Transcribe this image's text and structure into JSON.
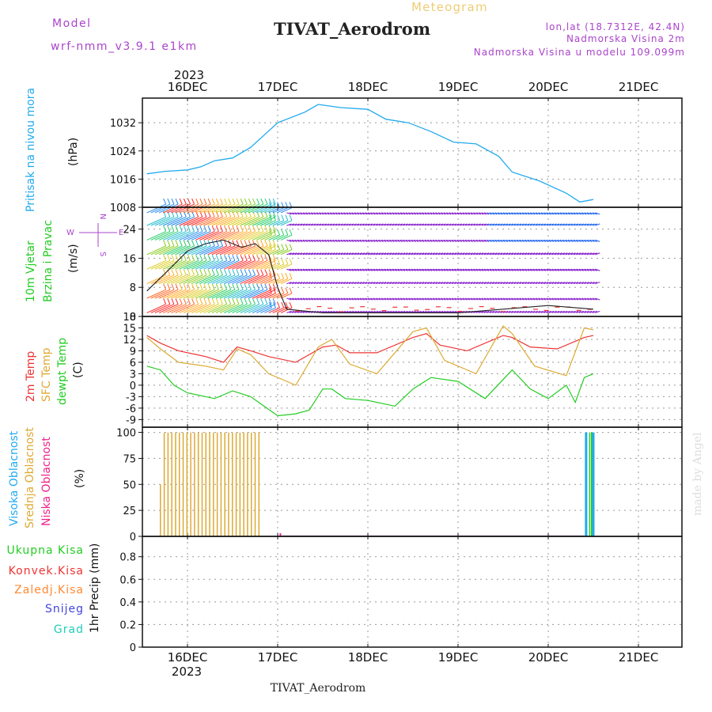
{
  "header": {
    "model_label": "Model",
    "model_name": "wrf-nmm_v3.9.1 e1km",
    "subtitle": "Meteogram",
    "station": "TIVAT_Aerodrom",
    "lonlat": "lon,lat (18.7312E, 42.4N)",
    "elevation": "Nadmorska Visina 2m",
    "model_elevation": "Nadmorska Visina u modelu 109.099m",
    "footer_station": "TIVAT_Aerodrom",
    "credit": "made by Angel"
  },
  "colors": {
    "pressure": "#22aaee",
    "temp": "#ee3333",
    "sfc_temp": "#ddaa33",
    "dewpt": "#22cc22",
    "high_cloud": "#22aaee",
    "mid_cloud": "#ddaa33",
    "low_cloud": "#ee2288",
    "wind_low": "#8822cc",
    "purple_text": "#aa44cc"
  },
  "chart_data": [
    {
      "type": "line",
      "panel": "pressure",
      "ylabel_1": "Pritisak na nivou mora",
      "ylabel_2": "(hPa)",
      "yticks": [
        "1008",
        "1016",
        "1024",
        "1032"
      ],
      "ylim": [
        1008,
        1039
      ],
      "x_unit": "day offset from 15DEC 2023 00Z",
      "x": [
        0.55,
        0.75,
        1.0,
        1.15,
        1.3,
        1.5,
        1.7,
        2.0,
        2.3,
        2.45,
        2.7,
        3.0,
        3.2,
        3.45,
        3.7,
        3.95,
        4.2,
        4.45,
        4.6,
        4.9,
        5.2,
        5.35,
        5.5
      ],
      "values": [
        1017.5,
        1018.2,
        1018.6,
        1019.5,
        1021.2,
        1022.0,
        1025.0,
        1032.0,
        1035.0,
        1037.2,
        1036.3,
        1035.8,
        1033.0,
        1032.0,
        1029.5,
        1026.5,
        1026.0,
        1022.5,
        1018.0,
        1015.5,
        1012.0,
        1009.5,
        1010.2
      ]
    },
    {
      "type": "barbs",
      "panel": "wind",
      "ylabel_1": "10m Vjetar",
      "ylabel_2": "Brzina i Pravac",
      "ylabel_3": "(m/s)",
      "compass_n": "N",
      "compass_s": "S",
      "compass_w": "W",
      "compass_e": "E",
      "yticks": [
        "0",
        "8",
        "16",
        "24"
      ],
      "ylim": [
        0,
        30
      ],
      "speed_x": [
        0.55,
        0.8,
        1.0,
        1.2,
        1.4,
        1.6,
        1.75,
        1.9,
        2.0,
        2.1,
        2.5,
        3.0,
        3.5,
        4.0,
        4.5,
        5.0,
        5.5
      ],
      "speed_values": [
        7,
        13,
        18,
        20,
        21,
        19,
        20,
        17,
        8,
        2,
        1,
        1,
        1,
        1,
        2,
        3,
        2
      ]
    },
    {
      "type": "line",
      "panel": "temperature",
      "ylabel_1": "2m Temp",
      "ylabel_2": "SFC Temp",
      "ylabel_3": "dewpt Temp",
      "ylabel_4": "(C)",
      "yticks": [
        "-9",
        "-6",
        "-3",
        "0",
        "3",
        "6",
        "9",
        "12",
        "15",
        "18"
      ],
      "ylim": [
        -11,
        18
      ],
      "series": [
        {
          "name": "2m Temp",
          "x": [
            0.55,
            0.7,
            0.9,
            1.2,
            1.4,
            1.55,
            1.7,
            1.9,
            2.2,
            2.5,
            2.65,
            2.8,
            3.1,
            3.5,
            3.65,
            3.8,
            4.1,
            4.5,
            4.6,
            4.8,
            5.1,
            5.4,
            5.5
          ],
          "values": [
            13,
            11,
            9,
            7.5,
            6,
            10,
            9,
            7.5,
            6,
            10,
            10.5,
            8.5,
            8.5,
            12.5,
            13.5,
            10.5,
            9,
            13,
            12.5,
            10,
            9.5,
            12.5,
            13
          ]
        },
        {
          "name": "SFC Temp",
          "x": [
            0.55,
            0.7,
            0.9,
            1.2,
            1.4,
            1.55,
            1.7,
            1.9,
            2.2,
            2.45,
            2.6,
            2.8,
            3.1,
            3.5,
            3.65,
            3.85,
            4.2,
            4.5,
            4.6,
            4.85,
            5.2,
            5.4,
            5.5
          ],
          "values": [
            12.5,
            9.5,
            6,
            5,
            4,
            9.5,
            8,
            3,
            0,
            10,
            12,
            5.5,
            3,
            14,
            15,
            6.5,
            3,
            15.5,
            13.5,
            5,
            2.5,
            15,
            14.5
          ]
        },
        {
          "name": "dewpt Temp",
          "x": [
            0.55,
            0.7,
            0.85,
            1.0,
            1.3,
            1.5,
            1.7,
            2.0,
            2.2,
            2.35,
            2.5,
            2.6,
            2.75,
            3.0,
            3.3,
            3.5,
            3.7,
            4.0,
            4.3,
            4.5,
            4.6,
            4.8,
            5.0,
            5.2,
            5.3,
            5.4,
            5.5
          ],
          "values": [
            5,
            4,
            0,
            -2,
            -3.5,
            -1.5,
            -3,
            -8,
            -7.5,
            -6.5,
            -1,
            -1,
            -3.5,
            -4,
            -5.5,
            -1,
            2,
            1,
            -3.5,
            1.5,
            4,
            -1,
            -3.5,
            0,
            -4.5,
            2,
            3
          ]
        }
      ]
    },
    {
      "type": "bar",
      "panel": "cloud",
      "ylabel_1": "Visoka Oblacnost",
      "ylabel_2": "Srednja Oblacnost",
      "ylabel_3": "Niska Oblacnost",
      "ylabel_4": "(%)",
      "yticks": [
        "0",
        "25",
        "50",
        "75",
        "100"
      ],
      "ylim": [
        0,
        105
      ],
      "series": [
        {
          "name": "Srednja Oblacnost",
          "x_start": 0.7,
          "x_end": 1.8,
          "step": 0.042,
          "values_note_first": 50,
          "value": 100
        },
        {
          "name": "Visoka Oblacnost",
          "x": [
            5.42,
            5.5
          ],
          "values": [
            100,
            100
          ]
        },
        {
          "name": "Niska Oblacnost",
          "x": [
            2.03
          ],
          "values": [
            3
          ]
        }
      ]
    },
    {
      "type": "line",
      "panel": "precip",
      "legend": [
        "Ukupna Kisa",
        "Konvek.Kisa",
        "Zaledj.Kisa",
        "Snijeg",
        "Grad"
      ],
      "legend_colors": [
        "#22cc22",
        "#ee3333",
        "#ff8833",
        "#4444dd",
        "#22ccbb"
      ],
      "ylabel_1": "1hr Precip (mm)",
      "yticks": [
        "0",
        "0.2",
        "0.4",
        "0.6",
        "0.8"
      ],
      "ylim": [
        0,
        0.98
      ],
      "values": []
    }
  ],
  "x_axis": {
    "year_top": "2023",
    "year_bottom": "2023",
    "day_labels": [
      "16DEC",
      "17DEC",
      "18DEC",
      "19DEC",
      "20DEC",
      "21DEC"
    ]
  }
}
